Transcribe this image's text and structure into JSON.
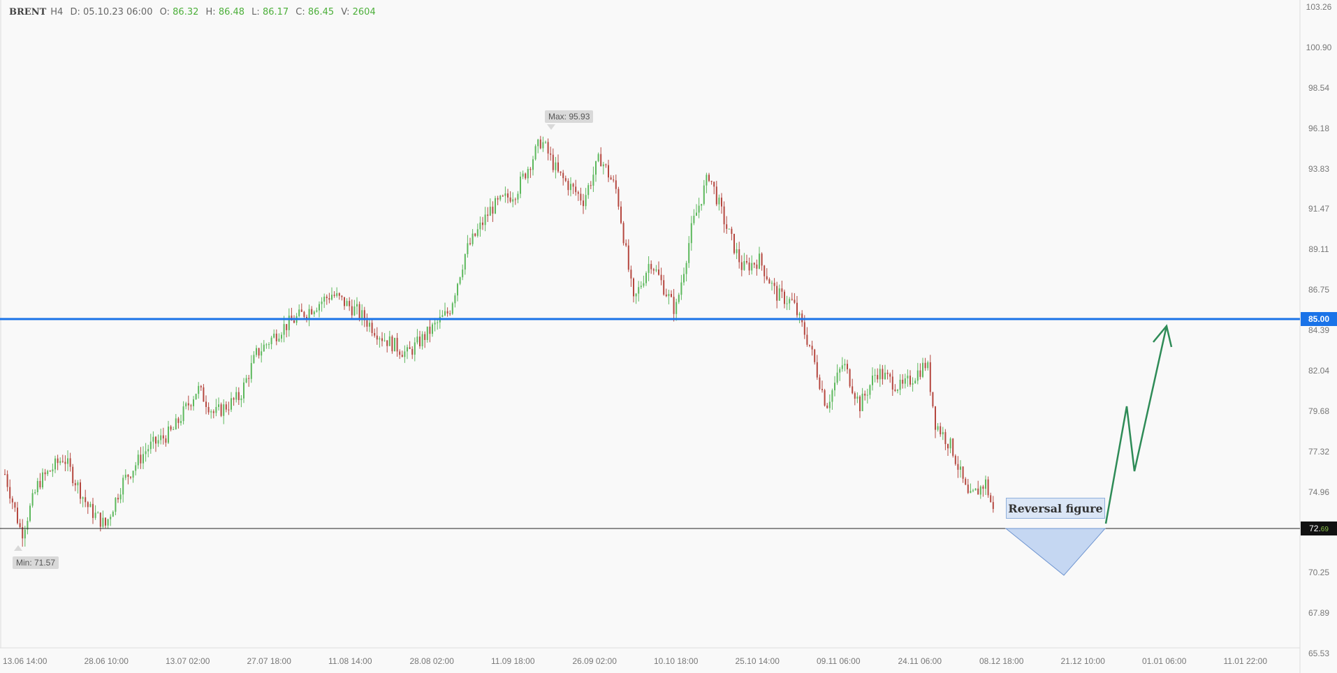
{
  "header": {
    "symbol": "BRENT",
    "timeframe": "H4",
    "date_label": "D:",
    "date_value": "05.10.23 06:00",
    "open_label": "O:",
    "open_value": "86.32",
    "high_label": "H:",
    "high_value": "86.48",
    "low_label": "L:",
    "low_value": "86.17",
    "close_label": "C:",
    "close_value": "86.45",
    "volume_label": "V:",
    "volume_value": "2604"
  },
  "annotations": {
    "max_label": "Max: 95.93",
    "min_label": "Min: 71.57",
    "level_85_label": "85.00",
    "last_price_main": "72.",
    "last_price_small": "69",
    "reversal_label": "Reversal figure"
  },
  "colors": {
    "up_candle": "#5cb85c",
    "down_candle": "#b5473f",
    "level_line": "#1a73e8",
    "forecast_arrow": "#2e8b57",
    "triangle_fill": "#c5d7f2",
    "triangle_stroke": "#6f95d0"
  },
  "chart_data": {
    "type": "candlestick",
    "title": "",
    "ylim": [
      65.53,
      103.26
    ],
    "y_ticks": [
      "103.26",
      "100.90",
      "98.54",
      "96.18",
      "93.83",
      "91.47",
      "89.11",
      "86.75",
      "84.39",
      "82.04",
      "79.68",
      "77.32",
      "74.96",
      "72.69",
      "70.25",
      "67.89",
      "65.53"
    ],
    "x_ticks": [
      "13.06 14:00",
      "28.06 10:00",
      "13.07 02:00",
      "27.07 18:00",
      "11.08 14:00",
      "28.08 02:00",
      "11.09 18:00",
      "26.09 02:00",
      "10.10 18:00",
      "25.10 14:00",
      "09.11 06:00",
      "24.11 06:00",
      "08.12 18:00",
      "21.12 10:00",
      "01.01 06:00",
      "11.01 22:00"
    ],
    "price_path": [
      [
        0,
        76.0
      ],
      [
        20,
        72.5
      ],
      [
        40,
        75.5
      ],
      [
        70,
        77.0
      ],
      [
        100,
        74.0
      ],
      [
        120,
        73.0
      ],
      [
        140,
        75.5
      ],
      [
        170,
        77.5
      ],
      [
        200,
        78.5
      ],
      [
        230,
        81.0
      ],
      [
        250,
        79.5
      ],
      [
        280,
        80.5
      ],
      [
        300,
        83.0
      ],
      [
        330,
        84.5
      ],
      [
        360,
        85.5
      ],
      [
        390,
        86.5
      ],
      [
        420,
        85.5
      ],
      [
        450,
        84.0
      ],
      [
        480,
        83.0
      ],
      [
        510,
        84.5
      ],
      [
        530,
        85.5
      ],
      [
        550,
        89.0
      ],
      [
        580,
        91.5
      ],
      [
        610,
        92.5
      ],
      [
        640,
        95.5
      ],
      [
        660,
        93.5
      ],
      [
        690,
        92.0
      ],
      [
        710,
        94.5
      ],
      [
        730,
        92.5
      ],
      [
        750,
        86.0
      ],
      [
        770,
        88.5
      ],
      [
        800,
        85.5
      ],
      [
        820,
        90.5
      ],
      [
        840,
        93.5
      ],
      [
        860,
        90.5
      ],
      [
        880,
        88.0
      ],
      [
        900,
        88.5
      ],
      [
        920,
        86.5
      ],
      [
        940,
        86.0
      ],
      [
        960,
        83.5
      ],
      [
        980,
        80.0
      ],
      [
        1000,
        82.5
      ],
      [
        1020,
        80.0
      ],
      [
        1040,
        82.0
      ],
      [
        1070,
        81.0
      ],
      [
        1100,
        82.5
      ],
      [
        1110,
        79.0
      ],
      [
        1130,
        77.5
      ],
      [
        1150,
        74.5
      ],
      [
        1170,
        75.5
      ],
      [
        1185,
        72.69
      ]
    ],
    "max": {
      "label": "Max: 95.93",
      "value": 95.93
    },
    "min": {
      "label": "Min: 71.57",
      "value": 71.57
    },
    "levels": [
      {
        "label": "85.00",
        "value": 85.0,
        "style": "blue-thick"
      },
      {
        "label": "72.69",
        "value": 72.69,
        "style": "black-thin"
      }
    ],
    "pattern": {
      "label": "Reversal figure",
      "base": 72.69,
      "bottom": 70.0
    },
    "forecast_path": [
      72.69,
      79.8,
      76.3,
      84.8
    ]
  }
}
